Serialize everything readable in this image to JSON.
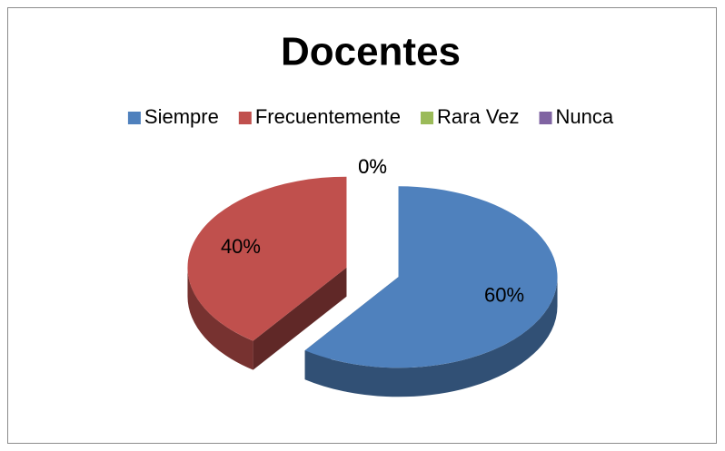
{
  "chart_data": {
    "type": "pie",
    "title": "Docentes",
    "categories": [
      "Siempre",
      "Frecuentemente",
      "Rara Vez",
      "Nunca"
    ],
    "values": [
      60,
      40,
      0,
      0
    ],
    "value_labels": [
      "60%",
      "40%",
      "0%",
      "0%"
    ],
    "colors": [
      "#4f81bd",
      "#c0504d",
      "#9bbb59",
      "#8064a2"
    ],
    "legend": "top"
  }
}
